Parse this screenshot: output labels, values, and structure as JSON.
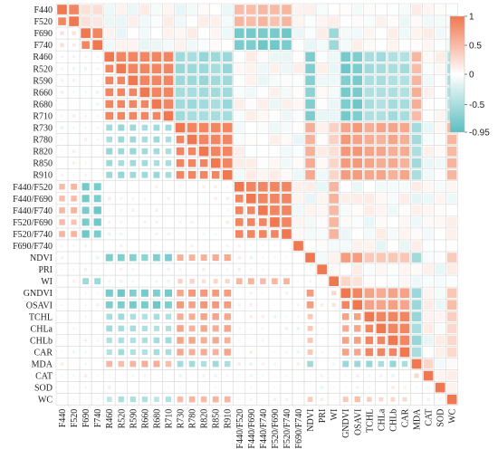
{
  "chart_data": {
    "type": "heatmap",
    "title": "",
    "xlabel": "",
    "ylabel": "",
    "variables": [
      "F440",
      "F520",
      "F690",
      "F740",
      "R460",
      "R520",
      "R590",
      "R660",
      "R680",
      "R710",
      "R730",
      "R780",
      "R820",
      "R850",
      "R910",
      "F440/F520",
      "F440/F690",
      "F440/F740",
      "F520/F690",
      "F520/F740",
      "F690/F740",
      "NDVI",
      "PRI",
      "WI",
      "GNDVI",
      "OSAVI",
      "TCHL",
      "CHLa",
      "CHLb",
      "CAR",
      "MDA",
      "CAT",
      "SOD",
      "WC"
    ],
    "groups": {
      "F440": "a",
      "F520": "a",
      "F690": "b",
      "F740": "b",
      "R460": "c",
      "R520": "c",
      "R590": "c",
      "R660": "c",
      "R680": "c",
      "R710": "c",
      "R730": "d",
      "R780": "d",
      "R820": "d",
      "R850": "d",
      "R910": "d",
      "F440/F520": "e",
      "F440/F690": "e",
      "F440/F740": "e",
      "F520/F690": "e",
      "F520/F740": "e",
      "F690/F740": "f",
      "NDVI": "g",
      "PRI": "h",
      "WI": "i",
      "GNDVI": "d2",
      "OSAVI": "d2",
      "TCHL": "j",
      "CHLa": "j",
      "CHLb": "j",
      "CAR": "j",
      "MDA": "k",
      "CAT": "l",
      "SOD": "m",
      "WC": "n"
    },
    "group_correlations": {
      "c|d": -0.55,
      "c|g": -0.7,
      "c|d2": -0.78,
      "c|j": -0.5,
      "c|k": 0.55,
      "c|n": -0.45,
      "d|g": 0.6,
      "d|d2": 0.72,
      "d|j": 0.62,
      "d|k": -0.5,
      "d|n": 0.5,
      "d2|g": 0.7,
      "d2|j": 0.65,
      "d2|k": -0.6,
      "d2|n": 0.45,
      "g|j": 0.45,
      "g|k": -0.55,
      "g|n": 0.4,
      "j|k": -0.55,
      "j|n": 0.3,
      "b|e": -0.8,
      "b|i": -0.6,
      "e|i": 0.55,
      "a|b": 0.2,
      "a|e": 0.5,
      "i|d": 0.3,
      "i|d2": 0.25,
      "l|k": 0.3
    },
    "within_group_correlation": 0.9,
    "diagonal": 1,
    "color_scale": {
      "min": -0.95,
      "max": 1,
      "min_color": "#5cbfc0",
      "mid_color": "#ffffff",
      "max_color": "#f07850",
      "ticks": [
        1,
        0.5,
        0,
        -0.5,
        -0.95
      ]
    },
    "layout": "upper: filled cells, lower: scaled squares",
    "legend_position": "top-right"
  }
}
